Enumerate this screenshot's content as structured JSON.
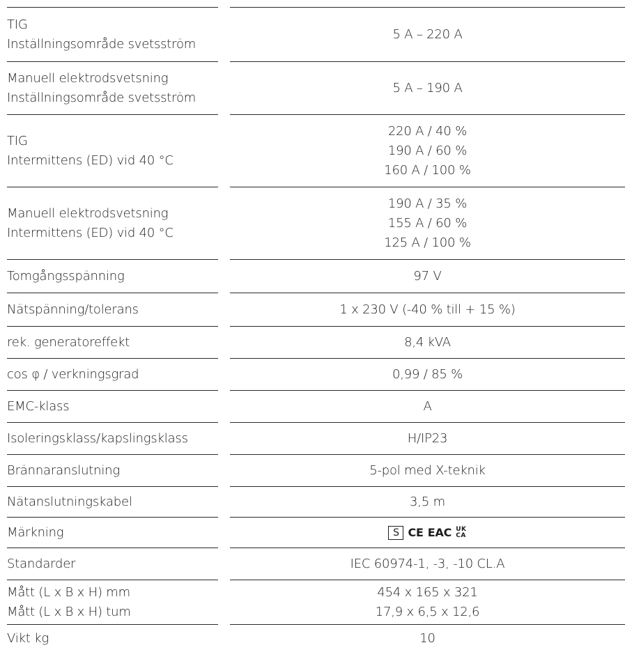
{
  "rows": [
    {
      "label": [
        "TIG",
        "Inställningsområde svetsström"
      ],
      "value": [
        "5 A – 220 A"
      ]
    },
    {
      "label": [
        "Manuell elektrodsvetsning",
        "Inställningsområde svetsström"
      ],
      "value": [
        "5 A – 190 A"
      ]
    },
    {
      "label": [
        "TIG",
        "Intermittens (ED) vid 40 °C"
      ],
      "value": [
        "220 A / 40 %",
        "190 A / 60 %",
        "160 A / 100 %"
      ]
    },
    {
      "label": [
        "Manuell elektrodsvetsning",
        "Intermittens (ED) vid 40 °C"
      ],
      "value": [
        "190 A / 35 %",
        "155 A / 60 %",
        "125 A / 100 %"
      ]
    },
    {
      "label": [
        "Tomgångsspänning"
      ],
      "value": [
        "97 V"
      ]
    },
    {
      "label": [
        "Nätspänning/tolerans"
      ],
      "value": [
        "1 x 230 V (-40 % till + 15 %)"
      ]
    },
    {
      "label": [
        "rek. generatoreffekt"
      ],
      "value": [
        "8,4 kVA"
      ]
    },
    {
      "label": [
        "cos φ / verkningsgrad"
      ],
      "value": [
        "0,99 / 85 %"
      ]
    },
    {
      "label": [
        "EMC-klass"
      ],
      "value": [
        "A"
      ]
    },
    {
      "label": [
        "Isoleringsklass/kapslingsklass"
      ],
      "value": [
        "H/IP23"
      ]
    },
    {
      "label": [
        "Brännaranslutning"
      ],
      "value": [
        "5-pol med X-teknik"
      ]
    },
    {
      "label": [
        "Nätanslutningskabel"
      ],
      "value": [
        "3,5 m"
      ]
    },
    {
      "label": [
        "Märkning"
      ],
      "value": []
    },
    {
      "label": [
        "Standarder"
      ],
      "value": [
        "IEC 60974-1, -3, -10 CL.A"
      ]
    },
    {
      "label": [
        "Mått (L x B x H) mm",
        "Mått (L x B x H) tum"
      ],
      "value": [
        "454 x 165 x 321",
        "17,9 x 6,5 x 12,6"
      ]
    },
    {
      "label": [
        "Vikt kg"
      ],
      "value": [
        "10"
      ]
    }
  ],
  "markings": {
    "s_mark": "S",
    "ce_mark": "CE",
    "eac_mark": "EAC",
    "ukca_mark": [
      "UK",
      "CA"
    ]
  }
}
